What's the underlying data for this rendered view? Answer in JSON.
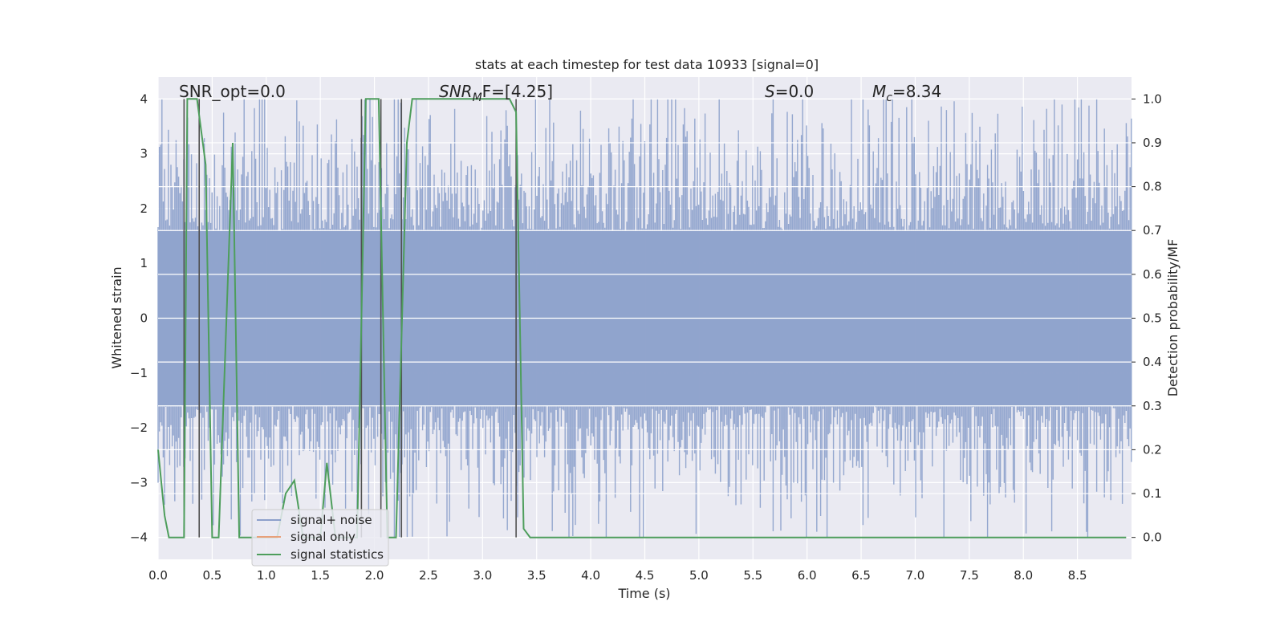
{
  "chart_data": {
    "type": "line",
    "title": "stats at each timestep for test data 10933 [signal=0]",
    "xlabel": "Time (s)",
    "ylabel_left": "Whitened strain",
    "ylabel_right": "Detection probability/MF",
    "xlim": [
      0.0,
      9.0
    ],
    "ylim_left": [
      -4.4,
      4.4
    ],
    "ylim_right": [
      -0.05,
      1.05
    ],
    "x_ticks": [
      "0.0",
      "0.5",
      "1.0",
      "1.5",
      "2.0",
      "2.5",
      "3.0",
      "3.5",
      "4.0",
      "4.5",
      "5.0",
      "5.5",
      "6.0",
      "6.5",
      "7.0",
      "7.5",
      "8.0",
      "8.5"
    ],
    "y_ticks_left": [
      "−4",
      "−3",
      "−2",
      "−1",
      "0",
      "1",
      "2",
      "3",
      "4"
    ],
    "y_ticks_right": [
      "0.0",
      "0.1",
      "0.2",
      "0.3",
      "0.4",
      "0.5",
      "0.6",
      "0.7",
      "0.8",
      "0.9",
      "1.0"
    ],
    "grid": true,
    "annotations": {
      "snr_opt": "SNR_opt=0.0",
      "snr_mf_name": "SNR",
      "snr_mf_sub": "M",
      "snr_mf_rest": "F=[4.25]",
      "s_name": "S",
      "s_rest": "=0.0",
      "mc_name": "M",
      "mc_sub": "c",
      "mc_rest": "=8.34"
    },
    "legend": {
      "position": "lower-left",
      "entries": [
        {
          "label": "signal+ noise",
          "color": "#8da0cb"
        },
        {
          "label": "signal only",
          "color": "#e8a07a"
        },
        {
          "label": "signal statistics",
          "color": "#4e9e5c"
        }
      ]
    },
    "noise_series": {
      "name": "signal+ noise",
      "color": "#8fa3cc",
      "band_upper": 1.6,
      "band_lower": -1.6,
      "spike_amplitude": 4.0
    },
    "vertical_markers_x": [
      0.24,
      0.38,
      1.88,
      2.06,
      2.25,
      3.31
    ],
    "statistics_series": {
      "name": "signal statistics",
      "color": "#4e9e5c",
      "x": [
        0.0,
        0.06,
        0.1,
        0.18,
        0.24,
        0.27,
        0.3,
        0.36,
        0.44,
        0.5,
        0.56,
        0.69,
        0.75,
        0.88,
        1.0,
        1.1,
        1.18,
        1.26,
        1.34,
        1.5,
        1.56,
        1.64,
        1.84,
        1.92,
        1.97,
        2.04,
        2.12,
        2.2,
        2.3,
        2.35,
        2.5,
        3.0,
        3.25,
        3.31,
        3.38,
        3.44,
        3.5,
        4.0,
        5.0,
        6.0,
        7.0,
        8.0,
        8.95
      ],
      "values": [
        0.2,
        0.05,
        0.0,
        0.0,
        0.0,
        1.0,
        1.0,
        1.0,
        0.85,
        0.0,
        0.0,
        0.9,
        0.0,
        0.0,
        0.0,
        0.0,
        0.1,
        0.13,
        0.0,
        0.0,
        0.17,
        0.0,
        0.0,
        1.0,
        1.0,
        1.0,
        0.0,
        0.0,
        0.9,
        1.0,
        1.0,
        1.0,
        1.0,
        0.97,
        0.02,
        0.0,
        0.0,
        0.0,
        0.0,
        0.0,
        0.0,
        0.0,
        0.0
      ]
    }
  }
}
